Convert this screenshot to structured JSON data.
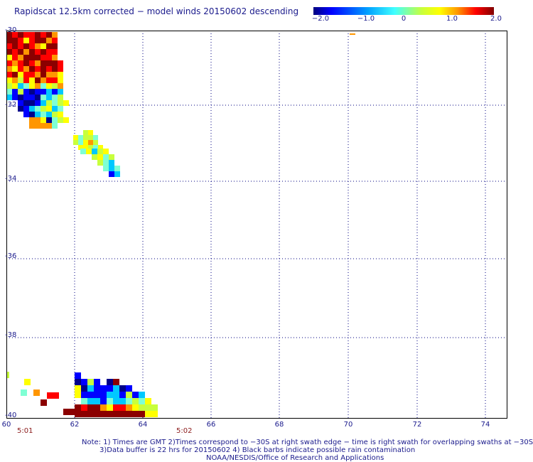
{
  "title": "Rapidscat 12.5km corrected − model winds 20150602 descending",
  "colorbar": {
    "ticks": [
      "−2.0",
      "−1.0",
      "0",
      "1.0",
      "2.0"
    ],
    "tick_values": [
      -2.0,
      -1.0,
      0,
      1.0,
      2.0
    ],
    "range": [
      -2.0,
      2.0
    ],
    "colors": [
      "#000080",
      "#0000ff",
      "#00c8ff",
      "#7fffd4",
      "#c8ff3c",
      "#ffff00",
      "#ff9600",
      "#ff0000",
      "#8b0000"
    ]
  },
  "map": {
    "lat_labels": [
      "-30",
      "-32",
      "-34",
      "-36",
      "-38",
      "-40"
    ],
    "lon_labels": [
      "60",
      "62",
      "64",
      "66",
      "68",
      "70",
      "72",
      "74"
    ],
    "lat_range": [
      -30,
      -40
    ],
    "lon_range": [
      60,
      75
    ],
    "gridline_color": "#000080"
  },
  "times": [
    "5:01",
    "5:02"
  ],
  "notes": [
    "Note: 1) Times are GMT 2)Times correspond to −30S at right swath edge − time is right swath for overlapping swaths at −30S",
    "3)Data buffer is 22 hrs for 20150602 4) Black barbs indicate possible rain contamination",
    "NOAA/NESDIS/Office of Research and Applications"
  ]
}
